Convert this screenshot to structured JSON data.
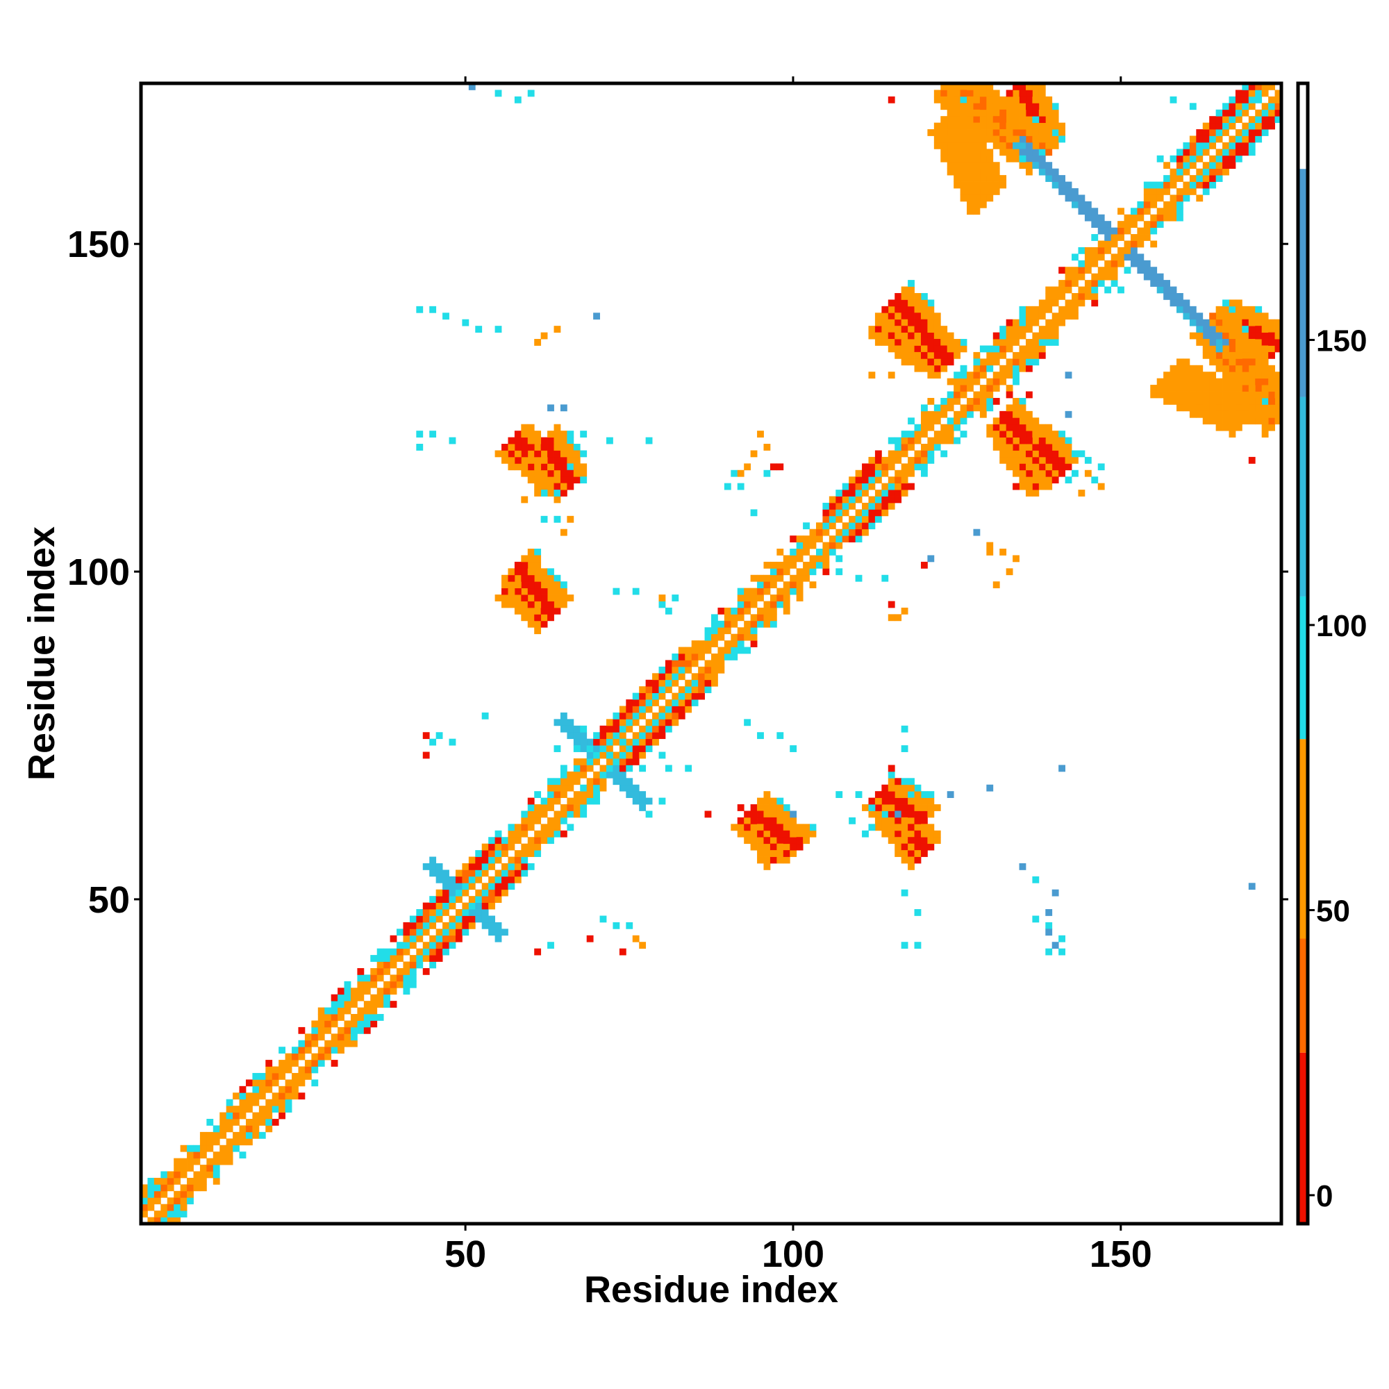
{
  "chart_data": {
    "type": "heatmap",
    "title": "",
    "xlabel": "Residue index",
    "ylabel": "Residue index",
    "x_range": [
      1,
      174
    ],
    "y_range": [
      1,
      174
    ],
    "x_ticks": [
      50,
      100,
      150
    ],
    "y_ticks": [
      50,
      100,
      150
    ],
    "x_tick_labels": [
      "50",
      "100",
      "150"
    ],
    "y_tick_labels": [
      "50",
      "100",
      "150"
    ],
    "grid": false,
    "symmetric": true,
    "colorbar": {
      "range": [
        -5,
        195
      ],
      "ticks": [
        0,
        50,
        100,
        150
      ],
      "tick_labels": [
        "0",
        "50",
        "100",
        "150"
      ],
      "bands": [
        {
          "from": -5,
          "to": 25,
          "color": "#ee1100"
        },
        {
          "from": 25,
          "to": 45,
          "color": "#ff6a00"
        },
        {
          "from": 45,
          "to": 80,
          "color": "#ff9900"
        },
        {
          "from": 80,
          "to": 105,
          "color": "#22dde8"
        },
        {
          "from": 105,
          "to": 140,
          "color": "#33bbdd"
        },
        {
          "from": 140,
          "to": 180,
          "color": "#4a9bd0"
        },
        {
          "from": 180,
          "to": 195,
          "color": "#ffffff"
        }
      ]
    },
    "regions": [
      {
        "kind": "diagonal",
        "from": 1,
        "to": 174
      },
      {
        "kind": "antiparallel",
        "i": [
          94,
          98
        ],
        "j": [
          57,
          63
        ],
        "value": 10
      },
      {
        "kind": "antiparallel",
        "i": [
          115,
          120
        ],
        "j": [
          57,
          63
        ],
        "value": 8
      },
      {
        "kind": "antiparallel",
        "i": [
          58,
          63
        ],
        "j": [
          93,
          100
        ],
        "value": 8
      },
      {
        "kind": "antiparallel",
        "i": [
          62,
          66
        ],
        "j": [
          113,
          119
        ],
        "value": 8
      },
      {
        "kind": "antiparallel",
        "i": [
          114,
          121
        ],
        "j": [
          133,
          138
        ],
        "value": 8
      },
      {
        "kind": "antiparallel",
        "i": [
          132,
          141
        ],
        "j": [
          115,
          123
        ],
        "value": 8
      },
      {
        "kind": "antiparallel",
        "i": [
          165,
          174
        ],
        "j": [
          134,
          138
        ],
        "value": 8
      },
      {
        "kind": "antiparallel",
        "i": [
          124,
          138
        ],
        "j": [
          163,
          174
        ],
        "value": 40
      },
      {
        "kind": "antiparallel",
        "i": [
          157,
          169
        ],
        "j": [
          123,
          129
        ],
        "value": 45
      },
      {
        "kind": "cross",
        "center": [
          150,
          150
        ],
        "length": 15,
        "value": 145
      },
      {
        "kind": "cross",
        "center": [
          71,
          71
        ],
        "length": 6,
        "value": 120
      },
      {
        "kind": "cross",
        "center": [
          50,
          50
        ],
        "length": 5,
        "value": 130
      },
      {
        "kind": "scatter",
        "value": 95,
        "cells": [
          [
            55,
            173
          ],
          [
            58,
            172
          ],
          [
            60,
            173
          ],
          [
            43,
            140
          ],
          [
            45,
            140
          ],
          [
            47,
            139
          ],
          [
            50,
            138
          ],
          [
            52,
            137
          ],
          [
            55,
            137
          ],
          [
            43,
            121
          ],
          [
            45,
            121
          ],
          [
            48,
            120
          ],
          [
            43,
            119
          ],
          [
            68,
            121
          ],
          [
            72,
            120
          ],
          [
            78,
            120
          ],
          [
            66,
            116
          ],
          [
            68,
            114
          ],
          [
            62,
            112
          ],
          [
            64,
            112
          ],
          [
            64,
            108
          ],
          [
            62,
            108
          ],
          [
            90,
            113
          ],
          [
            92,
            113
          ],
          [
            94,
            109
          ],
          [
            91,
            115
          ],
          [
            96,
            115
          ],
          [
            104,
            103
          ],
          [
            106,
            103
          ],
          [
            110,
            99
          ],
          [
            114,
            99
          ],
          [
            107,
            100
          ],
          [
            73,
            97
          ],
          [
            76,
            97
          ],
          [
            82,
            96
          ],
          [
            80,
            95
          ],
          [
            81,
            94
          ],
          [
            95,
            75
          ],
          [
            93,
            77
          ],
          [
            98,
            75
          ],
          [
            100,
            73
          ],
          [
            81,
            70
          ],
          [
            84,
            70
          ],
          [
            77,
            70
          ],
          [
            80,
            72
          ],
          [
            117,
            76
          ],
          [
            117,
            73
          ],
          [
            115,
            69
          ],
          [
            117,
            68
          ],
          [
            110,
            66
          ],
          [
            112,
            64
          ],
          [
            114,
            63
          ],
          [
            107,
            66
          ],
          [
            118,
            66
          ],
          [
            112,
            61
          ],
          [
            111,
            60
          ],
          [
            109,
            62
          ],
          [
            45,
            74
          ],
          [
            46,
            75
          ],
          [
            48,
            74
          ],
          [
            53,
            78
          ],
          [
            68,
            67
          ],
          [
            70,
            66
          ],
          [
            78,
            63
          ],
          [
            80,
            65
          ],
          [
            64,
            73
          ],
          [
            67,
            73
          ],
          [
            69,
            71
          ],
          [
            68,
            76
          ],
          [
            71,
            47
          ],
          [
            73,
            46
          ],
          [
            75,
            46
          ],
          [
            63,
            43
          ],
          [
            69,
            73
          ],
          [
            72,
            72
          ],
          [
            74,
            74
          ],
          [
            78,
            76
          ],
          [
            80,
            78
          ],
          [
            117,
            51
          ],
          [
            119,
            48
          ],
          [
            117,
            43
          ],
          [
            119,
            43
          ],
          [
            137,
            47
          ],
          [
            139,
            46
          ],
          [
            141,
            44
          ],
          [
            139,
            42
          ],
          [
            141,
            42
          ],
          [
            137,
            53
          ],
          [
            158,
            172
          ],
          [
            161,
            171
          ],
          [
            156,
            163
          ],
          [
            162,
            165
          ],
          [
            168,
            163
          ],
          [
            170,
            164
          ],
          [
            171,
            172
          ],
          [
            146,
            143
          ],
          [
            150,
            143
          ],
          [
            138,
            164
          ],
          [
            135,
            163
          ],
          [
            128,
            132
          ],
          [
            130,
            131
          ],
          [
            124,
            123
          ],
          [
            126,
            121
          ],
          [
            145,
            117
          ],
          [
            147,
            116
          ],
          [
            143,
            118
          ],
          [
            143,
            115
          ],
          [
            142,
            114
          ],
          [
            146,
            114
          ]
        ]
      },
      {
        "kind": "scatter",
        "value": 140,
        "cells": [
          [
            51,
            174
          ],
          [
            70,
            139
          ],
          [
            135,
            55
          ],
          [
            140,
            51
          ],
          [
            139,
            48
          ],
          [
            139,
            45
          ],
          [
            140,
            43
          ],
          [
            170,
            52
          ],
          [
            141,
            70
          ],
          [
            130,
            67
          ],
          [
            124,
            66
          ],
          [
            121,
            102
          ],
          [
            128,
            106
          ],
          [
            100,
            63
          ],
          [
            116,
            63
          ],
          [
            65,
            125
          ],
          [
            63,
            125
          ],
          [
            142,
            130
          ],
          [
            142,
            124
          ]
        ]
      },
      {
        "kind": "scatter",
        "value": 8,
        "cells": [
          [
            115,
            172
          ],
          [
            44,
            75
          ],
          [
            44,
            72
          ],
          [
            74,
            42
          ],
          [
            69,
            44
          ],
          [
            61,
            42
          ],
          [
            98,
            116
          ],
          [
            97,
            116
          ],
          [
            87,
            63
          ],
          [
            92,
            64
          ],
          [
            170,
            117
          ],
          [
            134,
            113
          ],
          [
            120,
            101
          ],
          [
            115,
            95
          ],
          [
            115,
            70
          ],
          [
            116,
            68
          ],
          [
            133,
            127
          ],
          [
            131,
            126
          ],
          [
            136,
            127
          ]
        ]
      },
      {
        "kind": "scatter",
        "value": 55,
        "cells": [
          [
            116,
            93
          ],
          [
            117,
            94
          ],
          [
            115,
            93
          ],
          [
            93,
            116
          ],
          [
            92,
            115
          ],
          [
            94,
            118
          ],
          [
            114,
            61
          ],
          [
            116,
            58
          ],
          [
            117,
            59
          ],
          [
            60,
            114
          ],
          [
            61,
            112
          ],
          [
            59,
            111
          ],
          [
            66,
            108
          ],
          [
            65,
            106
          ],
          [
            80,
            96
          ],
          [
            77,
            43
          ],
          [
            76,
            44
          ],
          [
            61,
            135
          ],
          [
            62,
            136
          ],
          [
            64,
            137
          ],
          [
            96,
            119
          ],
          [
            95,
            121
          ],
          [
            115,
            130
          ],
          [
            112,
            130
          ],
          [
            130,
            103
          ],
          [
            132,
            103
          ],
          [
            134,
            102
          ],
          [
            130,
            104
          ],
          [
            133,
            100
          ],
          [
            131,
            98
          ],
          [
            137,
            120
          ],
          [
            135,
            118
          ],
          [
            170,
            123
          ],
          [
            172,
            121
          ],
          [
            145,
            115
          ],
          [
            147,
            113
          ],
          [
            144,
            112
          ]
        ]
      }
    ]
  }
}
